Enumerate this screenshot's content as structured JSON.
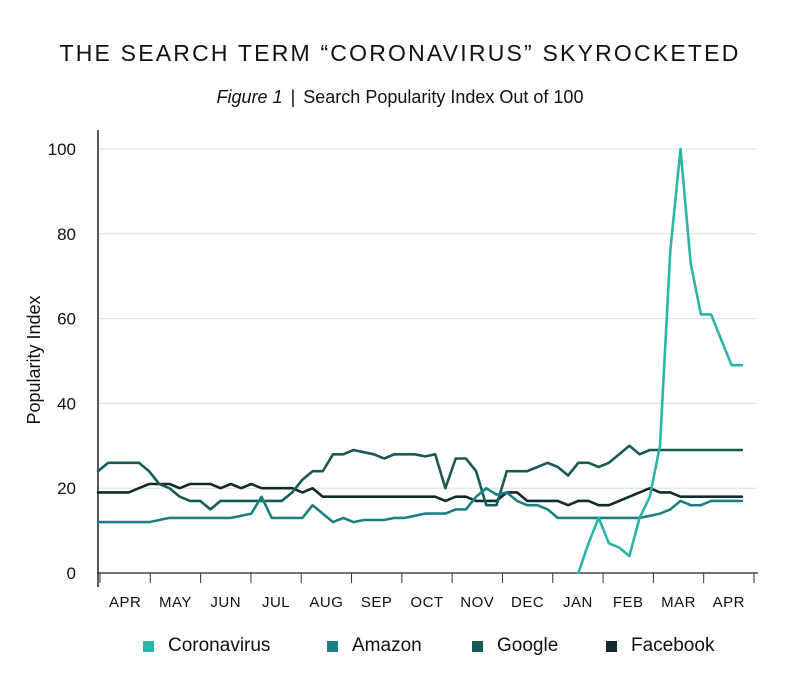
{
  "chart_data": {
    "type": "line",
    "title": "THE SEARCH TERM “CORONAVIRUS” SKYROCKETED",
    "figure_label": "Figure 1",
    "separator": "|",
    "subtitle": "Search Popularity Index Out of 100",
    "ylabel": "Popularity Index",
    "xlabel": "",
    "ylim": [
      0,
      100
    ],
    "yticks": [
      0,
      20,
      40,
      60,
      80,
      100
    ],
    "xlim": [
      0,
      64
    ],
    "month_labels": [
      "APR",
      "MAY",
      "JUN",
      "JUL",
      "AUG",
      "SEP",
      "OCT",
      "NOV",
      "DEC",
      "JAN",
      "FEB",
      "MAR",
      "APR"
    ],
    "grid": "horizontal",
    "legend_position": "bottom",
    "series": [
      {
        "name": "Coronavirus",
        "color": "#2bb5a7",
        "x": [
          47,
          48,
          49,
          50,
          51,
          52,
          53,
          54,
          55,
          56,
          57,
          58,
          59,
          60,
          61,
          62,
          63
        ],
        "y": [
          0,
          7,
          13,
          7,
          6,
          4,
          13,
          18,
          30,
          76,
          100,
          73,
          61,
          61,
          55,
          49,
          49
        ]
      },
      {
        "name": "Amazon",
        "color": "#1d8080",
        "x": [
          0,
          1,
          2,
          3,
          4,
          5,
          6,
          7,
          8,
          9,
          10,
          11,
          12,
          13,
          14,
          15,
          16,
          17,
          18,
          19,
          20,
          21,
          22,
          23,
          24,
          25,
          26,
          27,
          28,
          29,
          30,
          31,
          32,
          33,
          34,
          35,
          36,
          37,
          38,
          39,
          40,
          41,
          42,
          43,
          44,
          45,
          46,
          47,
          48,
          49,
          50,
          51,
          52,
          53,
          54,
          55,
          56,
          57,
          58,
          59,
          60,
          61,
          62,
          63
        ],
        "y": [
          12,
          12,
          12,
          12,
          12,
          12,
          12.5,
          13,
          13,
          13,
          13,
          13,
          13,
          13,
          13.5,
          14,
          18,
          13,
          13,
          13,
          13,
          16,
          14,
          12,
          13,
          12,
          12.5,
          12.5,
          12.5,
          13,
          13,
          13.5,
          14,
          14,
          14,
          15,
          15,
          18,
          20,
          18.5,
          19,
          17,
          16,
          16,
          15,
          13,
          13,
          13,
          13,
          13,
          13,
          13,
          13,
          13,
          13.5,
          14,
          15,
          17,
          16,
          16,
          17,
          17,
          17,
          17
        ]
      },
      {
        "name": "Google",
        "color": "#175a58",
        "x": [
          0,
          1,
          2,
          3,
          4,
          5,
          6,
          7,
          8,
          9,
          10,
          11,
          12,
          13,
          14,
          15,
          16,
          17,
          18,
          19,
          20,
          21,
          22,
          23,
          24,
          25,
          26,
          27,
          28,
          29,
          30,
          31,
          32,
          33,
          34,
          35,
          36,
          37,
          38,
          39,
          40,
          41,
          42,
          43,
          44,
          45,
          46,
          47,
          48,
          49,
          50,
          51,
          52,
          53,
          54,
          55,
          56,
          57,
          58,
          59,
          60,
          61,
          62,
          63
        ],
        "y": [
          24,
          26,
          26,
          26,
          26,
          24,
          21,
          20,
          18,
          17,
          17,
          15,
          17,
          17,
          17,
          17,
          17,
          17,
          17,
          19,
          22,
          24,
          24,
          28,
          28,
          29,
          28.5,
          28,
          27,
          28,
          28,
          28,
          27.5,
          28,
          20,
          27,
          27,
          24,
          16,
          16,
          24,
          24,
          24,
          25,
          26,
          25,
          23,
          26,
          26,
          25,
          26,
          28,
          30,
          28,
          29,
          29,
          29,
          29,
          29,
          29,
          29,
          29,
          29,
          29
        ]
      },
      {
        "name": "Facebook",
        "color": "#122b2a",
        "x": [
          0,
          1,
          2,
          3,
          4,
          5,
          6,
          7,
          8,
          9,
          10,
          11,
          12,
          13,
          14,
          15,
          16,
          17,
          18,
          19,
          20,
          21,
          22,
          23,
          24,
          25,
          26,
          27,
          28,
          29,
          30,
          31,
          32,
          33,
          34,
          35,
          36,
          37,
          38,
          39,
          40,
          41,
          42,
          43,
          44,
          45,
          46,
          47,
          48,
          49,
          50,
          51,
          52,
          53,
          54,
          55,
          56,
          57,
          58,
          59,
          60,
          61,
          62,
          63
        ],
        "y": [
          19,
          19,
          19,
          19,
          20,
          21,
          21,
          21,
          20,
          21,
          21,
          21,
          20,
          21,
          20,
          21,
          20,
          20,
          20,
          20,
          19,
          20,
          18,
          18,
          18,
          18,
          18,
          18,
          18,
          18,
          18,
          18,
          18,
          18,
          17,
          18,
          18,
          17,
          17,
          17,
          19,
          19,
          17,
          17,
          17,
          17,
          16,
          17,
          17,
          16,
          16,
          17,
          18,
          19,
          20,
          19,
          19,
          18,
          18,
          18,
          18,
          18,
          18,
          18
        ]
      }
    ]
  }
}
